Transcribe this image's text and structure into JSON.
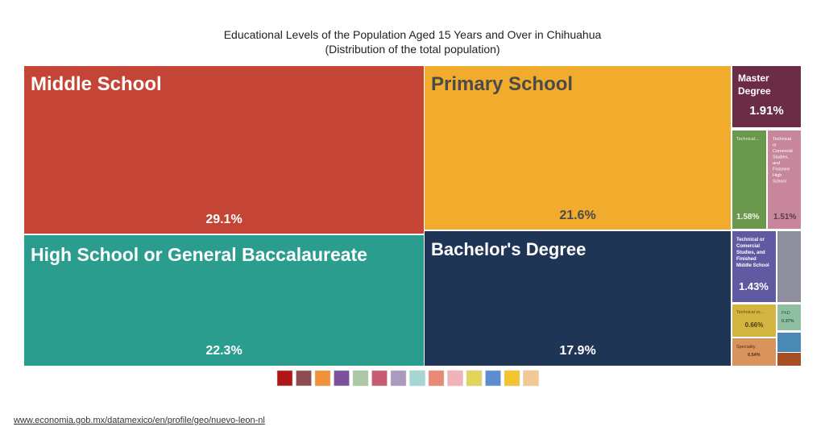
{
  "title": "Educational Levels of the Population Aged 15 Years and Over in Chihuahua",
  "subtitle": "(Distribution of the total population)",
  "source_link": "www.economia.gob.mx/datamexico/en/profile/geo/nuevo-leon-nl",
  "chart_data": {
    "type": "treemap",
    "tiles": [
      {
        "name": "Middle School",
        "label": "Middle School",
        "value": 29.1,
        "value_label": "29.1%",
        "color": "#C44536"
      },
      {
        "name": "High School or General Baccalaureate",
        "label": "High School or General Baccalaureate",
        "value": 22.3,
        "value_label": "22.3%",
        "color": "#2A9D8F"
      },
      {
        "name": "Primary School",
        "label": "Primary School",
        "value": 21.6,
        "value_label": "21.6%",
        "color": "#F2AC2D"
      },
      {
        "name": "Bachelor's Degree",
        "label": "Bachelor's Degree",
        "value": 17.9,
        "value_label": "17.9%",
        "color": "#1F3556"
      },
      {
        "name": "Master Degree",
        "label": "Master Degree",
        "value": 1.91,
        "value_label": "1.91%",
        "color": "#6B2C45"
      },
      {
        "name": "Technical...",
        "label": "Technical...",
        "value": 1.58,
        "value_label": "1.58%",
        "color": "#6A994E"
      },
      {
        "name": "Technical or Comercial Studies, and Finished High School",
        "label": "Technical or Comercial Studies, and Finished High School",
        "value": 1.51,
        "value_label": "1.51%",
        "color": "#C7869B"
      },
      {
        "name": "Technical or Comercial Studies, and Finished Middle School",
        "label": "Technical or Comercial Studies, and Finished Middle School",
        "value": 1.43,
        "value_label": "1.43%",
        "color": "#5F5AA2"
      },
      {
        "name": "",
        "label": "",
        "value": 1.0,
        "value_label": "",
        "color": "#8E8E9E"
      },
      {
        "name": "Technical or...",
        "label": "Technical or...",
        "value": 0.66,
        "value_label": "0.66%",
        "color": "#D4B440"
      },
      {
        "name": "PhD",
        "label": "PhD",
        "value": 0.37,
        "value_label": "0.37%",
        "color": "#8FBFA0"
      },
      {
        "name": "Speciality",
        "label": "Speciality",
        "value": 0.54,
        "value_label": "0.54%",
        "color": "#D9935C"
      },
      {
        "name": "",
        "label": "",
        "value": 0.3,
        "value_label": "",
        "color": "#4A8BB5"
      },
      {
        "name": "",
        "label": "",
        "value": 0.2,
        "value_label": "",
        "color": "#A84E24"
      }
    ],
    "legend_colors": [
      "#B01517",
      "#8E4C52",
      "#F0923A",
      "#7A519A",
      "#ADC8A6",
      "#C75C73",
      "#A89BBF",
      "#A6D6D1",
      "#E88A75",
      "#F2B3B8",
      "#E3D55A",
      "#5C8DCF",
      "#F2C530",
      "#F2C993"
    ]
  }
}
